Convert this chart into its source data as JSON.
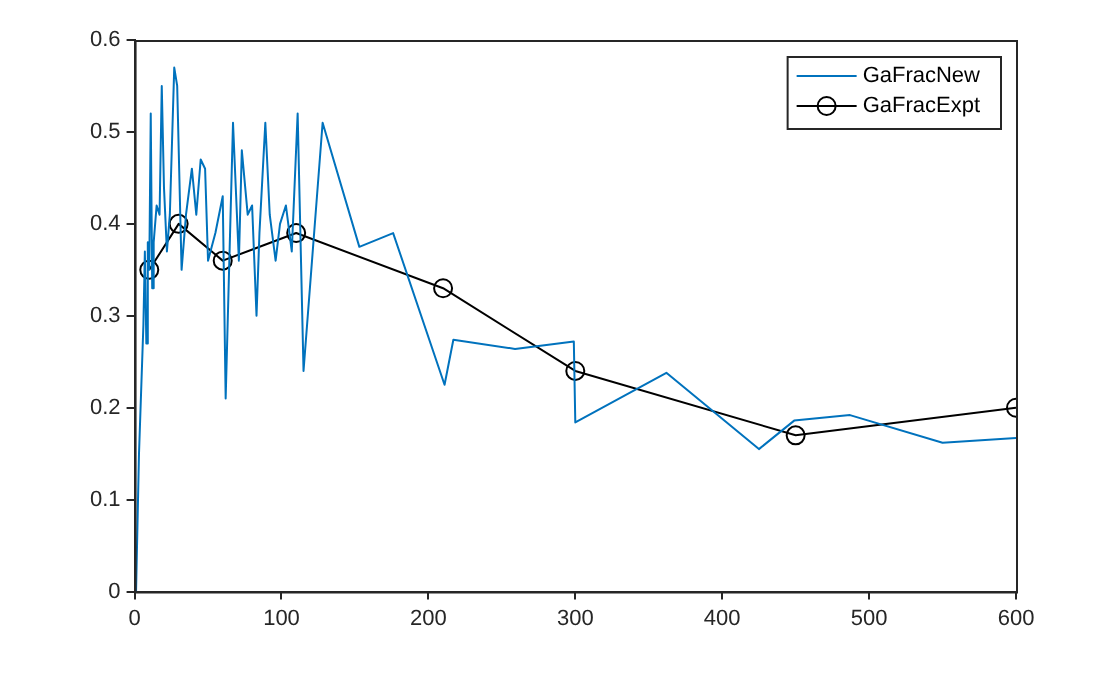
{
  "chart_data": {
    "type": "line",
    "xlim": [
      0,
      600
    ],
    "xticks": [
      0,
      100,
      200,
      300,
      400,
      500,
      600
    ],
    "ylim": [
      0,
      0.6
    ],
    "yticks": [
      0,
      0.1,
      0.2,
      0.3,
      0.4,
      0.5,
      0.6
    ],
    "legend": "top right",
    "series": [
      {
        "name": "GaFracNew",
        "color": "#0072bd",
        "marker": "none",
        "x": [
          1,
          3,
          6,
          7,
          8,
          9,
          10,
          11,
          12,
          13,
          15,
          17,
          18.5,
          20,
          22,
          24,
          27,
          29,
          32,
          35,
          39,
          42,
          45,
          48,
          50,
          55,
          60,
          62,
          67,
          71,
          73,
          77,
          80,
          83,
          85,
          89,
          92,
          96,
          99,
          103,
          107,
          111,
          115,
          128,
          153,
          176,
          211,
          217,
          259,
          299,
          300,
          362,
          425,
          449,
          487,
          550,
          600
        ],
        "values": [
          0,
          0.15,
          0.29,
          0.37,
          0.27,
          0.38,
          0.35,
          0.52,
          0.33,
          0.38,
          0.42,
          0.41,
          0.55,
          0.44,
          0.37,
          0.41,
          0.57,
          0.55,
          0.35,
          0.41,
          0.46,
          0.41,
          0.47,
          0.46,
          0.36,
          0.39,
          0.43,
          0.21,
          0.51,
          0.36,
          0.48,
          0.41,
          0.42,
          0.3,
          0.39,
          0.51,
          0.41,
          0.36,
          0.4,
          0.42,
          0.37,
          0.52,
          0.24,
          0.51,
          0.375,
          0.39,
          0.225,
          0.274,
          0.264,
          0.272,
          0.184,
          0.238,
          0.155,
          0.186,
          0.192,
          0.162,
          0.167
        ]
      },
      {
        "name": "GaFracExpt",
        "color": "#000000",
        "marker": "circle",
        "x": [
          10,
          30,
          60,
          110,
          210,
          300,
          450,
          600
        ],
        "values": [
          0.35,
          0.4,
          0.36,
          0.39,
          0.33,
          0.24,
          0.17,
          0.2
        ]
      }
    ]
  }
}
